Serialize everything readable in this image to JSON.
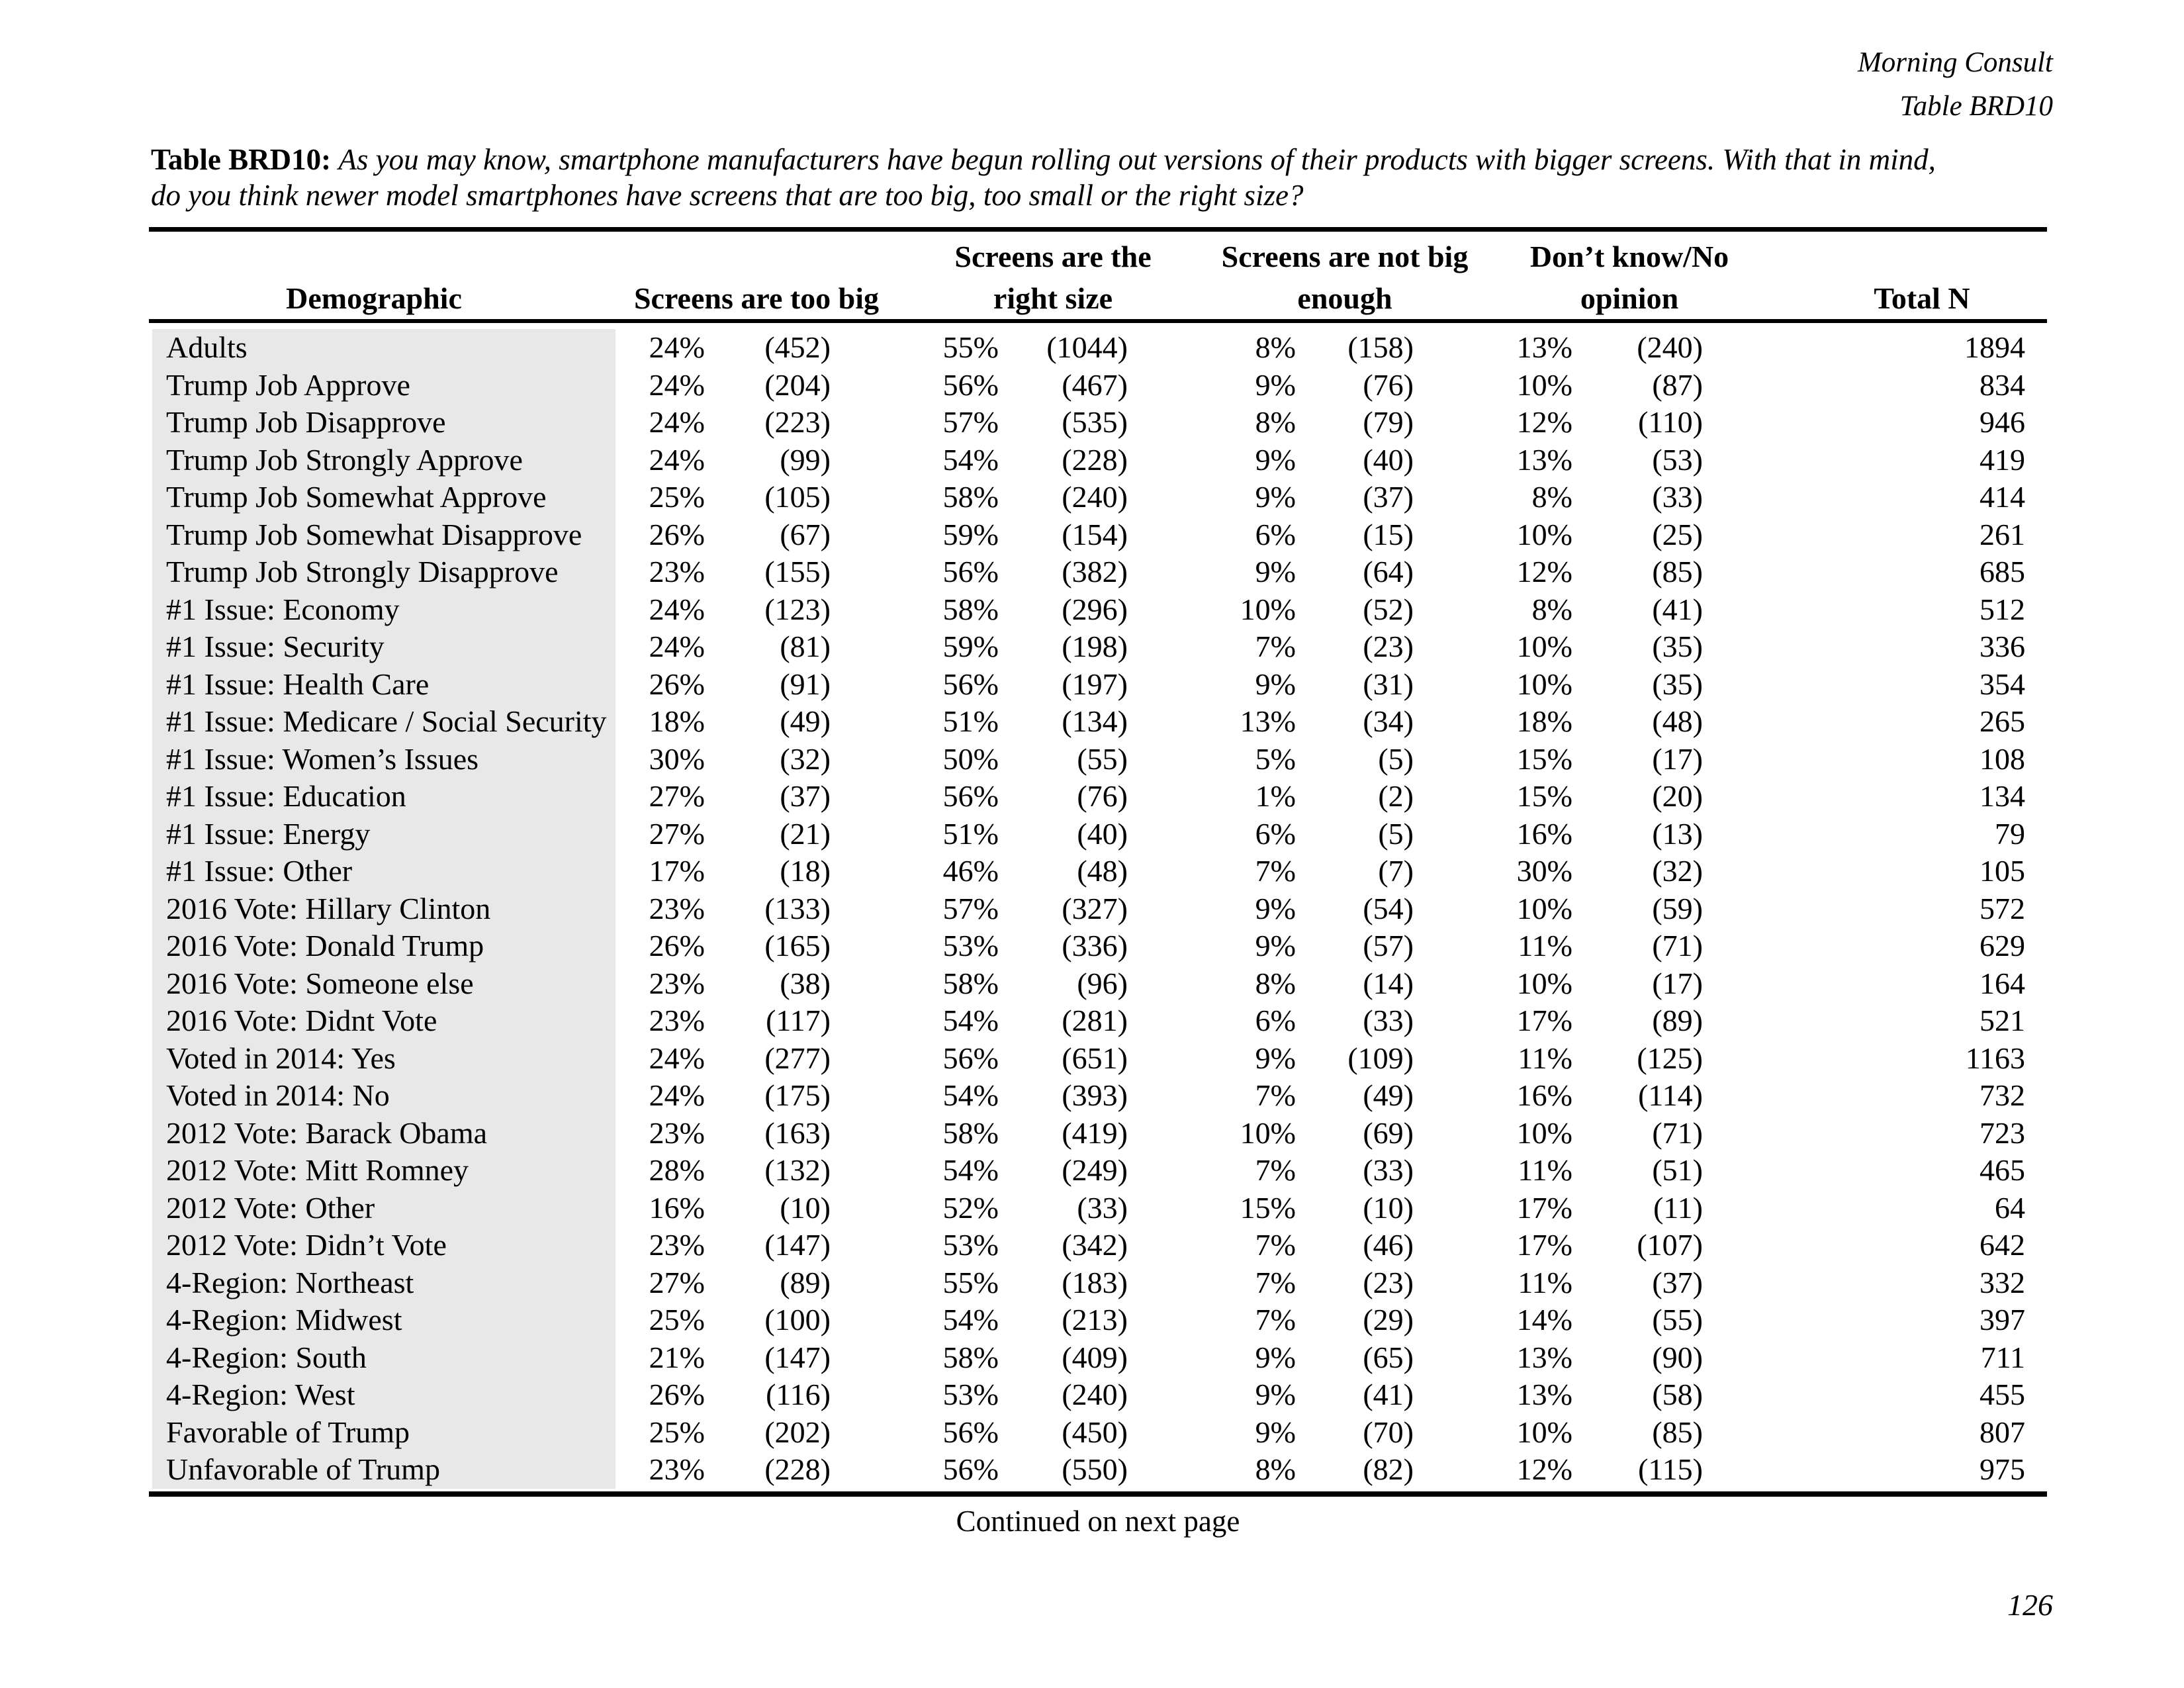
{
  "page": {
    "header_right_line1": "Morning Consult",
    "header_right_line2": "Table BRD10",
    "footer": "Continued on next page",
    "page_number": "126"
  },
  "title": {
    "label": "Table BRD10:",
    "line1": "As you may know, smartphone manufacturers have begun rolling out versions of their products with bigger screens. With that in mind,",
    "line2": "do you think newer model smartphones have screens that are too big, too small or the right size?"
  },
  "table": {
    "columns": [
      {
        "line1": "",
        "line2": "Demographic"
      },
      {
        "line1": "",
        "line2": "Screens are too big"
      },
      {
        "line1": "Screens are the",
        "line2": "right size"
      },
      {
        "line1": "Screens are not big",
        "line2": "enough"
      },
      {
        "line1": "Don’t know/No",
        "line2": "opinion"
      },
      {
        "line1": "",
        "line2": "Total N"
      }
    ],
    "rows": [
      {
        "label": "Adults",
        "values": [
          "24%",
          "(452)",
          "55%",
          "(1044)",
          "8%",
          "(158)",
          "13%",
          "(240)",
          "1894"
        ]
      },
      {
        "label": "Trump Job Approve",
        "values": [
          "24%",
          "(204)",
          "56%",
          "(467)",
          "9%",
          "(76)",
          "10%",
          "(87)",
          "834"
        ]
      },
      {
        "label": "Trump Job Disapprove",
        "values": [
          "24%",
          "(223)",
          "57%",
          "(535)",
          "8%",
          "(79)",
          "12%",
          "(110)",
          "946"
        ]
      },
      {
        "label": "Trump Job Strongly Approve",
        "values": [
          "24%",
          "(99)",
          "54%",
          "(228)",
          "9%",
          "(40)",
          "13%",
          "(53)",
          "419"
        ]
      },
      {
        "label": "Trump Job Somewhat Approve",
        "values": [
          "25%",
          "(105)",
          "58%",
          "(240)",
          "9%",
          "(37)",
          "8%",
          "(33)",
          "414"
        ]
      },
      {
        "label": "Trump Job Somewhat Disapprove",
        "values": [
          "26%",
          "(67)",
          "59%",
          "(154)",
          "6%",
          "(15)",
          "10%",
          "(25)",
          "261"
        ]
      },
      {
        "label": "Trump Job Strongly Disapprove",
        "values": [
          "23%",
          "(155)",
          "56%",
          "(382)",
          "9%",
          "(64)",
          "12%",
          "(85)",
          "685"
        ]
      },
      {
        "label": "#1 Issue: Economy",
        "values": [
          "24%",
          "(123)",
          "58%",
          "(296)",
          "10%",
          "(52)",
          "8%",
          "(41)",
          "512"
        ]
      },
      {
        "label": "#1 Issue: Security",
        "values": [
          "24%",
          "(81)",
          "59%",
          "(198)",
          "7%",
          "(23)",
          "10%",
          "(35)",
          "336"
        ]
      },
      {
        "label": "#1 Issue: Health Care",
        "values": [
          "26%",
          "(91)",
          "56%",
          "(197)",
          "9%",
          "(31)",
          "10%",
          "(35)",
          "354"
        ]
      },
      {
        "label": "#1 Issue: Medicare / Social Security",
        "values": [
          "18%",
          "(49)",
          "51%",
          "(134)",
          "13%",
          "(34)",
          "18%",
          "(48)",
          "265"
        ]
      },
      {
        "label": "#1 Issue: Women’s Issues",
        "values": [
          "30%",
          "(32)",
          "50%",
          "(55)",
          "5%",
          "(5)",
          "15%",
          "(17)",
          "108"
        ]
      },
      {
        "label": "#1 Issue: Education",
        "values": [
          "27%",
          "(37)",
          "56%",
          "(76)",
          "1%",
          "(2)",
          "15%",
          "(20)",
          "134"
        ]
      },
      {
        "label": "#1 Issue: Energy",
        "values": [
          "27%",
          "(21)",
          "51%",
          "(40)",
          "6%",
          "(5)",
          "16%",
          "(13)",
          "79"
        ]
      },
      {
        "label": "#1 Issue: Other",
        "values": [
          "17%",
          "(18)",
          "46%",
          "(48)",
          "7%",
          "(7)",
          "30%",
          "(32)",
          "105"
        ]
      },
      {
        "label": "2016 Vote: Hillary Clinton",
        "values": [
          "23%",
          "(133)",
          "57%",
          "(327)",
          "9%",
          "(54)",
          "10%",
          "(59)",
          "572"
        ]
      },
      {
        "label": "2016 Vote: Donald Trump",
        "values": [
          "26%",
          "(165)",
          "53%",
          "(336)",
          "9%",
          "(57)",
          "11%",
          "(71)",
          "629"
        ]
      },
      {
        "label": "2016 Vote: Someone else",
        "values": [
          "23%",
          "(38)",
          "58%",
          "(96)",
          "8%",
          "(14)",
          "10%",
          "(17)",
          "164"
        ]
      },
      {
        "label": "2016 Vote: Didnt Vote",
        "values": [
          "23%",
          "(117)",
          "54%",
          "(281)",
          "6%",
          "(33)",
          "17%",
          "(89)",
          "521"
        ]
      },
      {
        "label": "Voted in 2014: Yes",
        "values": [
          "24%",
          "(277)",
          "56%",
          "(651)",
          "9%",
          "(109)",
          "11%",
          "(125)",
          "1163"
        ]
      },
      {
        "label": "Voted in 2014: No",
        "values": [
          "24%",
          "(175)",
          "54%",
          "(393)",
          "7%",
          "(49)",
          "16%",
          "(114)",
          "732"
        ]
      },
      {
        "label": "2012 Vote: Barack Obama",
        "values": [
          "23%",
          "(163)",
          "58%",
          "(419)",
          "10%",
          "(69)",
          "10%",
          "(71)",
          "723"
        ]
      },
      {
        "label": "2012 Vote: Mitt Romney",
        "values": [
          "28%",
          "(132)",
          "54%",
          "(249)",
          "7%",
          "(33)",
          "11%",
          "(51)",
          "465"
        ]
      },
      {
        "label": "2012 Vote: Other",
        "values": [
          "16%",
          "(10)",
          "52%",
          "(33)",
          "15%",
          "(10)",
          "17%",
          "(11)",
          "64"
        ]
      },
      {
        "label": "2012 Vote: Didn’t Vote",
        "values": [
          "23%",
          "(147)",
          "53%",
          "(342)",
          "7%",
          "(46)",
          "17%",
          "(107)",
          "642"
        ]
      },
      {
        "label": "4-Region: Northeast",
        "values": [
          "27%",
          "(89)",
          "55%",
          "(183)",
          "7%",
          "(23)",
          "11%",
          "(37)",
          "332"
        ]
      },
      {
        "label": "4-Region: Midwest",
        "values": [
          "25%",
          "(100)",
          "54%",
          "(213)",
          "7%",
          "(29)",
          "14%",
          "(55)",
          "397"
        ]
      },
      {
        "label": "4-Region: South",
        "values": [
          "21%",
          "(147)",
          "58%",
          "(409)",
          "9%",
          "(65)",
          "13%",
          "(90)",
          "711"
        ]
      },
      {
        "label": "4-Region: West",
        "values": [
          "26%",
          "(116)",
          "53%",
          "(240)",
          "9%",
          "(41)",
          "13%",
          "(58)",
          "455"
        ]
      },
      {
        "label": "Favorable of Trump",
        "values": [
          "25%",
          "(202)",
          "56%",
          "(450)",
          "9%",
          "(70)",
          "10%",
          "(85)",
          "807"
        ]
      },
      {
        "label": "Unfavorable of Trump",
        "values": [
          "23%",
          "(228)",
          "56%",
          "(550)",
          "8%",
          "(82)",
          "12%",
          "(115)",
          "975"
        ]
      }
    ]
  }
}
